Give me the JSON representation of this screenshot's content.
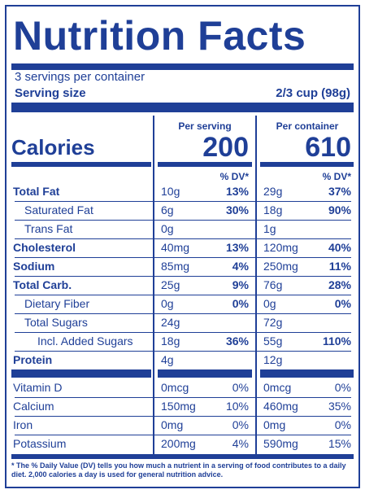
{
  "title": "Nutrition Facts",
  "servings_per_container": "3 servings per container",
  "serving_size_label": "Serving size",
  "serving_size_value": "2/3 cup (98g)",
  "calories": {
    "label": "Calories",
    "per_serving_header": "Per serving",
    "per_container_header": "Per container",
    "per_serving": "200",
    "per_container": "610"
  },
  "dv_header": "% DV*",
  "nutrients": [
    {
      "name": "Total Fat",
      "bold": true,
      "indent": 0,
      "serving_amount": "10g",
      "serving_dv": "13%",
      "container_amount": "29g",
      "container_dv": "37%"
    },
    {
      "name": "Saturated Fat",
      "bold": false,
      "indent": 1,
      "serving_amount": "6g",
      "serving_dv": "30%",
      "container_amount": "18g",
      "container_dv": "90%"
    },
    {
      "name": "Trans Fat",
      "bold": false,
      "indent": 1,
      "serving_amount": "0g",
      "serving_dv": "",
      "container_amount": "1g",
      "container_dv": ""
    },
    {
      "name": "Cholesterol",
      "bold": true,
      "indent": 0,
      "serving_amount": "40mg",
      "serving_dv": "13%",
      "container_amount": "120mg",
      "container_dv": "40%"
    },
    {
      "name": "Sodium",
      "bold": true,
      "indent": 0,
      "serving_amount": "85mg",
      "serving_dv": "4%",
      "container_amount": "250mg",
      "container_dv": "11%"
    },
    {
      "name": "Total Carb.",
      "bold": true,
      "indent": 0,
      "serving_amount": "25g",
      "serving_dv": "9%",
      "container_amount": "76g",
      "container_dv": "28%"
    },
    {
      "name": "Dietary Fiber",
      "bold": false,
      "indent": 1,
      "serving_amount": "0g",
      "serving_dv": "0%",
      "container_amount": "0g",
      "container_dv": "0%"
    },
    {
      "name": "Total Sugars",
      "bold": false,
      "indent": 1,
      "serving_amount": "24g",
      "serving_dv": "",
      "container_amount": "72g",
      "container_dv": ""
    },
    {
      "name": "Incl. Added Sugars",
      "bold": false,
      "indent": 2,
      "serving_amount": "18g",
      "serving_dv": "36%",
      "container_amount": "55g",
      "container_dv": "110%"
    },
    {
      "name": "Protein",
      "bold": true,
      "indent": 0,
      "serving_amount": "4g",
      "serving_dv": "",
      "container_amount": "12g",
      "container_dv": ""
    }
  ],
  "vitamins": [
    {
      "name": "Vitamin D",
      "serving_amount": "0mcg",
      "serving_dv": "0%",
      "container_amount": "0mcg",
      "container_dv": "0%"
    },
    {
      "name": "Calcium",
      "serving_amount": "150mg",
      "serving_dv": "10%",
      "container_amount": "460mg",
      "container_dv": "35%"
    },
    {
      "name": "Iron",
      "serving_amount": "0mg",
      "serving_dv": "0%",
      "container_amount": "0mg",
      "container_dv": "0%"
    },
    {
      "name": "Potassium",
      "serving_amount": "200mg",
      "serving_dv": "4%",
      "container_amount": "590mg",
      "container_dv": "15%"
    }
  ],
  "footnote": "* The % Daily Value (DV) tells you how much a nutrient in a serving of food contributes to a daily diet. 2,000 calories a day is used for general nutrition advice.",
  "colors": {
    "ink": "#1f3f97",
    "background": "#ffffff"
  }
}
